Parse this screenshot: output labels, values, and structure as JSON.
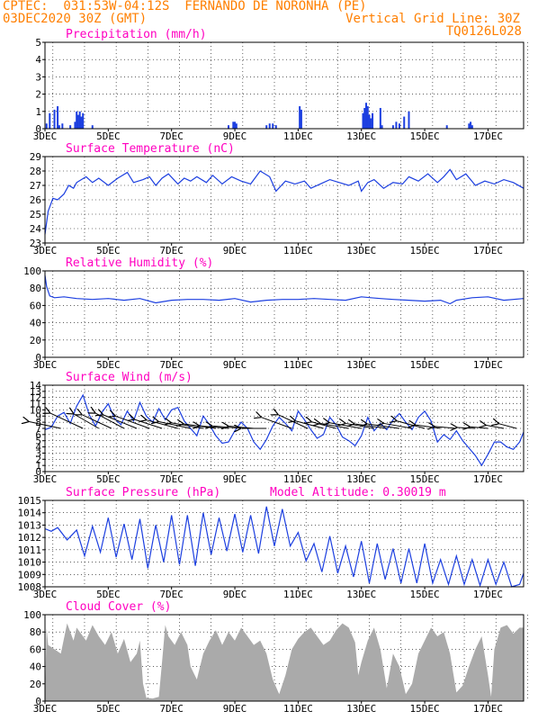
{
  "header": {
    "line1": "CPTEC:  031:53W-04:12S  FERNANDO DE NORONHA (PE)",
    "line2": "03DEC2020 30Z (GMT)",
    "grid_note": "Vertical Grid Line: 30Z",
    "run_id": "TQ0126L028"
  },
  "colors": {
    "header": "#ff7f00",
    "title": "#ff00c0",
    "line": "#1c3fe0",
    "bar": "#1c3fe0",
    "cloud": "#aaaaaa",
    "arrow": "#000000"
  },
  "x_ticks": [
    "3DEC",
    "5DEC",
    "7DEC",
    "9DEC",
    "11DEC",
    "13DEC",
    "15DEC",
    "17DEC"
  ],
  "chart_data": [
    {
      "id": "precip",
      "type": "bar",
      "title": "Precipitation (mm/h)",
      "x_range_days": [
        3,
        18.125
      ],
      "ylim": [
        0,
        5
      ],
      "yticks": [
        0,
        1,
        2,
        3,
        4,
        5
      ],
      "x": [
        3.05,
        3.15,
        3.3,
        3.4,
        3.45,
        3.55,
        3.8,
        3.95,
        4.0,
        4.05,
        4.1,
        4.15,
        4.2,
        4.5,
        8.8,
        8.95,
        9.0,
        9.05,
        10.0,
        10.1,
        10.2,
        10.3,
        11.05,
        11.1,
        13.05,
        13.1,
        13.15,
        13.2,
        13.25,
        13.3,
        13.35,
        13.6,
        13.65,
        14.0,
        14.1,
        14.2,
        14.35,
        14.5,
        15.7,
        16.4,
        16.45,
        16.5
      ],
      "values": [
        0.3,
        0.9,
        1.1,
        1.3,
        0.2,
        0.3,
        0.2,
        0.4,
        1.0,
        0.8,
        1.0,
        0.7,
        0.9,
        0.2,
        0.2,
        0.4,
        0.4,
        0.3,
        0.2,
        0.3,
        0.3,
        0.2,
        1.3,
        1.1,
        0.9,
        1.2,
        1.5,
        1.3,
        0.8,
        0.6,
        0.9,
        1.2,
        0.2,
        0.2,
        0.4,
        0.3,
        0.7,
        1.0,
        0.2,
        0.3,
        0.4,
        0.2
      ]
    },
    {
      "id": "temp",
      "type": "line",
      "title": "Surface Temperature (nC)",
      "x_range_days": [
        3,
        18.125
      ],
      "ylim": [
        23,
        29
      ],
      "yticks": [
        23,
        24,
        25,
        26,
        27,
        28,
        29
      ],
      "x": [
        3.0,
        3.1,
        3.25,
        3.4,
        3.6,
        3.75,
        3.9,
        4.0,
        4.3,
        4.5,
        4.7,
        5.0,
        5.3,
        5.6,
        5.8,
        6.1,
        6.3,
        6.5,
        6.7,
        6.9,
        7.2,
        7.4,
        7.6,
        7.8,
        8.1,
        8.3,
        8.6,
        8.9,
        9.2,
        9.5,
        9.8,
        10.1,
        10.3,
        10.6,
        10.9,
        11.2,
        11.4,
        11.7,
        12.0,
        12.3,
        12.6,
        12.9,
        13.0,
        13.2,
        13.4,
        13.7,
        14.0,
        14.3,
        14.5,
        14.8,
        15.1,
        15.4,
        15.6,
        15.8,
        16.0,
        16.3,
        16.6,
        16.9,
        17.2,
        17.5,
        17.8,
        18.125
      ],
      "series": [
        {
          "values": [
            23.6,
            25.2,
            26.1,
            26.0,
            26.4,
            27.0,
            26.8,
            27.2,
            27.6,
            27.2,
            27.5,
            27.0,
            27.5,
            27.9,
            27.2,
            27.4,
            27.6,
            27.0,
            27.5,
            27.8,
            27.1,
            27.5,
            27.3,
            27.6,
            27.2,
            27.7,
            27.1,
            27.6,
            27.3,
            27.1,
            28.0,
            27.6,
            26.6,
            27.3,
            27.1,
            27.3,
            26.8,
            27.1,
            27.4,
            27.2,
            27.0,
            27.3,
            26.6,
            27.2,
            27.4,
            26.8,
            27.2,
            27.1,
            27.6,
            27.3,
            27.8,
            27.2,
            27.6,
            28.1,
            27.4,
            27.8,
            27.0,
            27.3,
            27.1,
            27.4,
            27.2,
            26.8
          ]
        }
      ]
    },
    {
      "id": "rh",
      "type": "line",
      "title": "Relative Humidity (%)",
      "x_range_days": [
        3,
        18.125
      ],
      "ylim": [
        0,
        100
      ],
      "yticks": [
        0,
        20,
        40,
        60,
        80,
        100
      ],
      "x": [
        3.0,
        3.05,
        3.15,
        3.3,
        3.6,
        4.0,
        4.5,
        5.0,
        5.5,
        6.0,
        6.5,
        7.0,
        7.5,
        8.0,
        8.5,
        9.0,
        9.5,
        10.0,
        10.5,
        11.0,
        11.5,
        12.0,
        12.5,
        13.0,
        13.3,
        13.6,
        14.0,
        14.5,
        15.0,
        15.5,
        15.8,
        16.0,
        16.5,
        17.0,
        17.5,
        18.125
      ],
      "series": [
        {
          "values": [
            95,
            82,
            71,
            69,
            70,
            68,
            67,
            68,
            66,
            68,
            63,
            66,
            67,
            67,
            66,
            68,
            64,
            66,
            67,
            67,
            68,
            67,
            66,
            70,
            69,
            68,
            67,
            66,
            65,
            66,
            62,
            66,
            69,
            70,
            66,
            68
          ]
        }
      ]
    },
    {
      "id": "wind",
      "type": "line",
      "title": "Surface Wind (m/s)",
      "x_range_days": [
        3,
        18.125
      ],
      "ylim": [
        0,
        14
      ],
      "yticks": [
        0,
        1,
        2,
        3,
        4,
        5,
        6,
        7,
        8,
        9,
        10,
        11,
        12,
        13,
        14
      ],
      "x": [
        3.0,
        3.2,
        3.4,
        3.6,
        3.8,
        4.0,
        4.2,
        4.4,
        4.6,
        4.8,
        5.0,
        5.2,
        5.4,
        5.6,
        5.8,
        6.0,
        6.2,
        6.4,
        6.6,
        6.8,
        7.0,
        7.2,
        7.4,
        7.6,
        7.8,
        8.0,
        8.2,
        8.4,
        8.6,
        8.8,
        9.0,
        9.2,
        9.4,
        9.6,
        9.8,
        10.0,
        10.2,
        10.4,
        10.6,
        10.8,
        11.0,
        11.2,
        11.4,
        11.6,
        11.8,
        12.0,
        12.2,
        12.4,
        12.6,
        12.8,
        13.0,
        13.2,
        13.4,
        13.6,
        13.8,
        14.0,
        14.2,
        14.4,
        14.6,
        14.8,
        15.0,
        15.2,
        15.4,
        15.6,
        15.8,
        16.0,
        16.2,
        16.4,
        16.6,
        16.8,
        17.0,
        17.2,
        17.4,
        17.6,
        17.8,
        18.0,
        18.125
      ],
      "series": [
        {
          "values": [
            6.8,
            7.2,
            9.0,
            9.6,
            7.8,
            10.6,
            12.4,
            9.2,
            7.4,
            9.6,
            11.0,
            8.6,
            7.6,
            9.8,
            8.2,
            11.2,
            9.0,
            8.0,
            10.2,
            8.4,
            10.0,
            10.4,
            8.2,
            7.0,
            5.8,
            9.0,
            7.6,
            5.8,
            4.6,
            4.8,
            6.6,
            8.0,
            7.0,
            4.8,
            3.6,
            5.2,
            7.4,
            8.8,
            7.8,
            6.6,
            9.8,
            8.4,
            6.8,
            5.4,
            6.0,
            8.8,
            7.6,
            5.6,
            5.0,
            4.2,
            5.8,
            8.8,
            6.6,
            7.8,
            6.8,
            8.4,
            9.4,
            8.0,
            6.8,
            8.8,
            9.8,
            8.2,
            4.8,
            6.0,
            5.2,
            6.6,
            5.0,
            3.8,
            2.6,
            1.0,
            2.8,
            4.8,
            4.8,
            4.0,
            3.6,
            4.8,
            6.4
          ]
        }
      ],
      "arrows_x": [
        3.5,
        4.2,
        4.7,
        5.1,
        5.5,
        5.9,
        6.3,
        6.7,
        7.2,
        7.6,
        8.0,
        8.4,
        8.8,
        9.2,
        9.6,
        10.0,
        10.8,
        11.3,
        11.8,
        12.2,
        12.6,
        13.0,
        13.4,
        13.8,
        14.2,
        14.6,
        15.0,
        15.5,
        16.0,
        16.6,
        17.0,
        17.5,
        17.9
      ],
      "arrows_len": [
        4.5,
        5.0,
        4.0,
        4.5,
        4.5,
        5.0,
        5.0,
        4.0,
        4.5,
        4.5,
        4.5,
        4.5,
        4.0,
        4.0,
        3.5,
        3.5,
        4.5,
        4.5,
        4.0,
        3.5,
        4.0,
        4.5,
        4.0,
        4.5,
        4.5,
        4.0,
        4.0,
        3.5,
        3.0,
        2.5,
        2.5,
        2.5,
        2.5
      ],
      "arrows_dir": [
        12,
        25,
        30,
        25,
        28,
        22,
        20,
        18,
        15,
        12,
        10,
        8,
        5,
        5,
        5,
        0,
        20,
        25,
        15,
        15,
        10,
        10,
        10,
        8,
        8,
        10,
        15,
        8,
        5,
        3,
        5,
        10,
        15
      ]
    },
    {
      "id": "pressure",
      "type": "line",
      "title": "Surface Pressure (hPa)",
      "annotation": "Model Altitude: 0.30019 m",
      "x_range_days": [
        3,
        18.125
      ],
      "ylim": [
        1008,
        1015
      ],
      "yticks": [
        1008,
        1009,
        1010,
        1011,
        1012,
        1013,
        1014,
        1015
      ],
      "x": [
        3.0,
        3.2,
        3.4,
        3.7,
        4.0,
        4.25,
        4.5,
        4.75,
        5.0,
        5.25,
        5.5,
        5.75,
        6.0,
        6.25,
        6.5,
        6.75,
        7.0,
        7.25,
        7.5,
        7.75,
        8.0,
        8.25,
        8.5,
        8.75,
        9.0,
        9.25,
        9.5,
        9.75,
        10.0,
        10.25,
        10.5,
        10.75,
        11.0,
        11.25,
        11.5,
        11.75,
        12.0,
        12.25,
        12.5,
        12.75,
        13.0,
        13.25,
        13.5,
        13.75,
        14.0,
        14.25,
        14.5,
        14.75,
        15.0,
        15.25,
        15.5,
        15.75,
        16.0,
        16.25,
        16.5,
        16.75,
        17.0,
        17.25,
        17.5,
        17.75,
        18.0,
        18.125
      ],
      "series": [
        {
          "values": [
            1012.7,
            1012.5,
            1012.8,
            1011.8,
            1012.6,
            1010.5,
            1012.9,
            1010.8,
            1013.6,
            1010.4,
            1013.1,
            1010.2,
            1013.5,
            1009.5,
            1013.0,
            1010.0,
            1013.8,
            1009.8,
            1013.8,
            1009.7,
            1014.0,
            1010.6,
            1013.6,
            1010.9,
            1013.9,
            1010.8,
            1013.8,
            1010.7,
            1014.5,
            1011.3,
            1014.3,
            1011.3,
            1012.4,
            1010.1,
            1011.5,
            1009.2,
            1012.1,
            1009.1,
            1011.3,
            1008.8,
            1011.7,
            1008.3,
            1011.5,
            1008.6,
            1011.1,
            1008.3,
            1011.1,
            1008.3,
            1011.5,
            1008.3,
            1010.2,
            1008.2,
            1010.5,
            1008.2,
            1010.2,
            1008.1,
            1010.2,
            1008.2,
            1010.0,
            1008.0,
            1008.2,
            1009.1
          ]
        }
      ]
    },
    {
      "id": "cloud",
      "type": "area",
      "title": "Cloud Cover (%)",
      "x_range_days": [
        3,
        18.125
      ],
      "ylim": [
        0,
        100
      ],
      "yticks": [
        0,
        20,
        40,
        60,
        80,
        100
      ],
      "x": [
        3.0,
        3.05,
        3.1,
        3.3,
        3.5,
        3.7,
        3.9,
        4.0,
        4.1,
        4.3,
        4.5,
        4.7,
        4.9,
        5.1,
        5.3,
        5.5,
        5.7,
        5.9,
        6.0,
        6.1,
        6.2,
        6.4,
        6.6,
        6.7,
        6.8,
        6.9,
        7.1,
        7.3,
        7.5,
        7.6,
        7.8,
        8.0,
        8.2,
        8.4,
        8.6,
        8.8,
        9.0,
        9.2,
        9.4,
        9.6,
        9.8,
        10.0,
        10.2,
        10.4,
        10.6,
        10.8,
        11.0,
        11.2,
        11.4,
        11.6,
        11.8,
        12.0,
        12.2,
        12.4,
        12.6,
        12.8,
        12.9,
        13.0,
        13.2,
        13.4,
        13.6,
        13.8,
        14.0,
        14.2,
        14.4,
        14.6,
        14.8,
        15.0,
        15.2,
        15.4,
        15.6,
        15.8,
        16.0,
        16.2,
        16.4,
        16.6,
        16.8,
        17.0,
        17.1,
        17.2,
        17.4,
        17.6,
        17.8,
        18.0,
        18.125
      ],
      "values": [
        5,
        85,
        65,
        60,
        55,
        90,
        70,
        85,
        80,
        70,
        88,
        75,
        65,
        80,
        55,
        72,
        45,
        55,
        70,
        20,
        4,
        3,
        5,
        45,
        88,
        75,
        65,
        80,
        65,
        40,
        25,
        55,
        70,
        82,
        65,
        80,
        70,
        85,
        75,
        65,
        70,
        55,
        25,
        8,
        30,
        60,
        72,
        80,
        85,
        75,
        65,
        70,
        82,
        90,
        85,
        68,
        30,
        45,
        70,
        85,
        60,
        15,
        55,
        40,
        8,
        20,
        55,
        70,
        85,
        75,
        80,
        55,
        10,
        18,
        40,
        60,
        75,
        30,
        5,
        60,
        85,
        88,
        78,
        85,
        85
      ]
    }
  ]
}
